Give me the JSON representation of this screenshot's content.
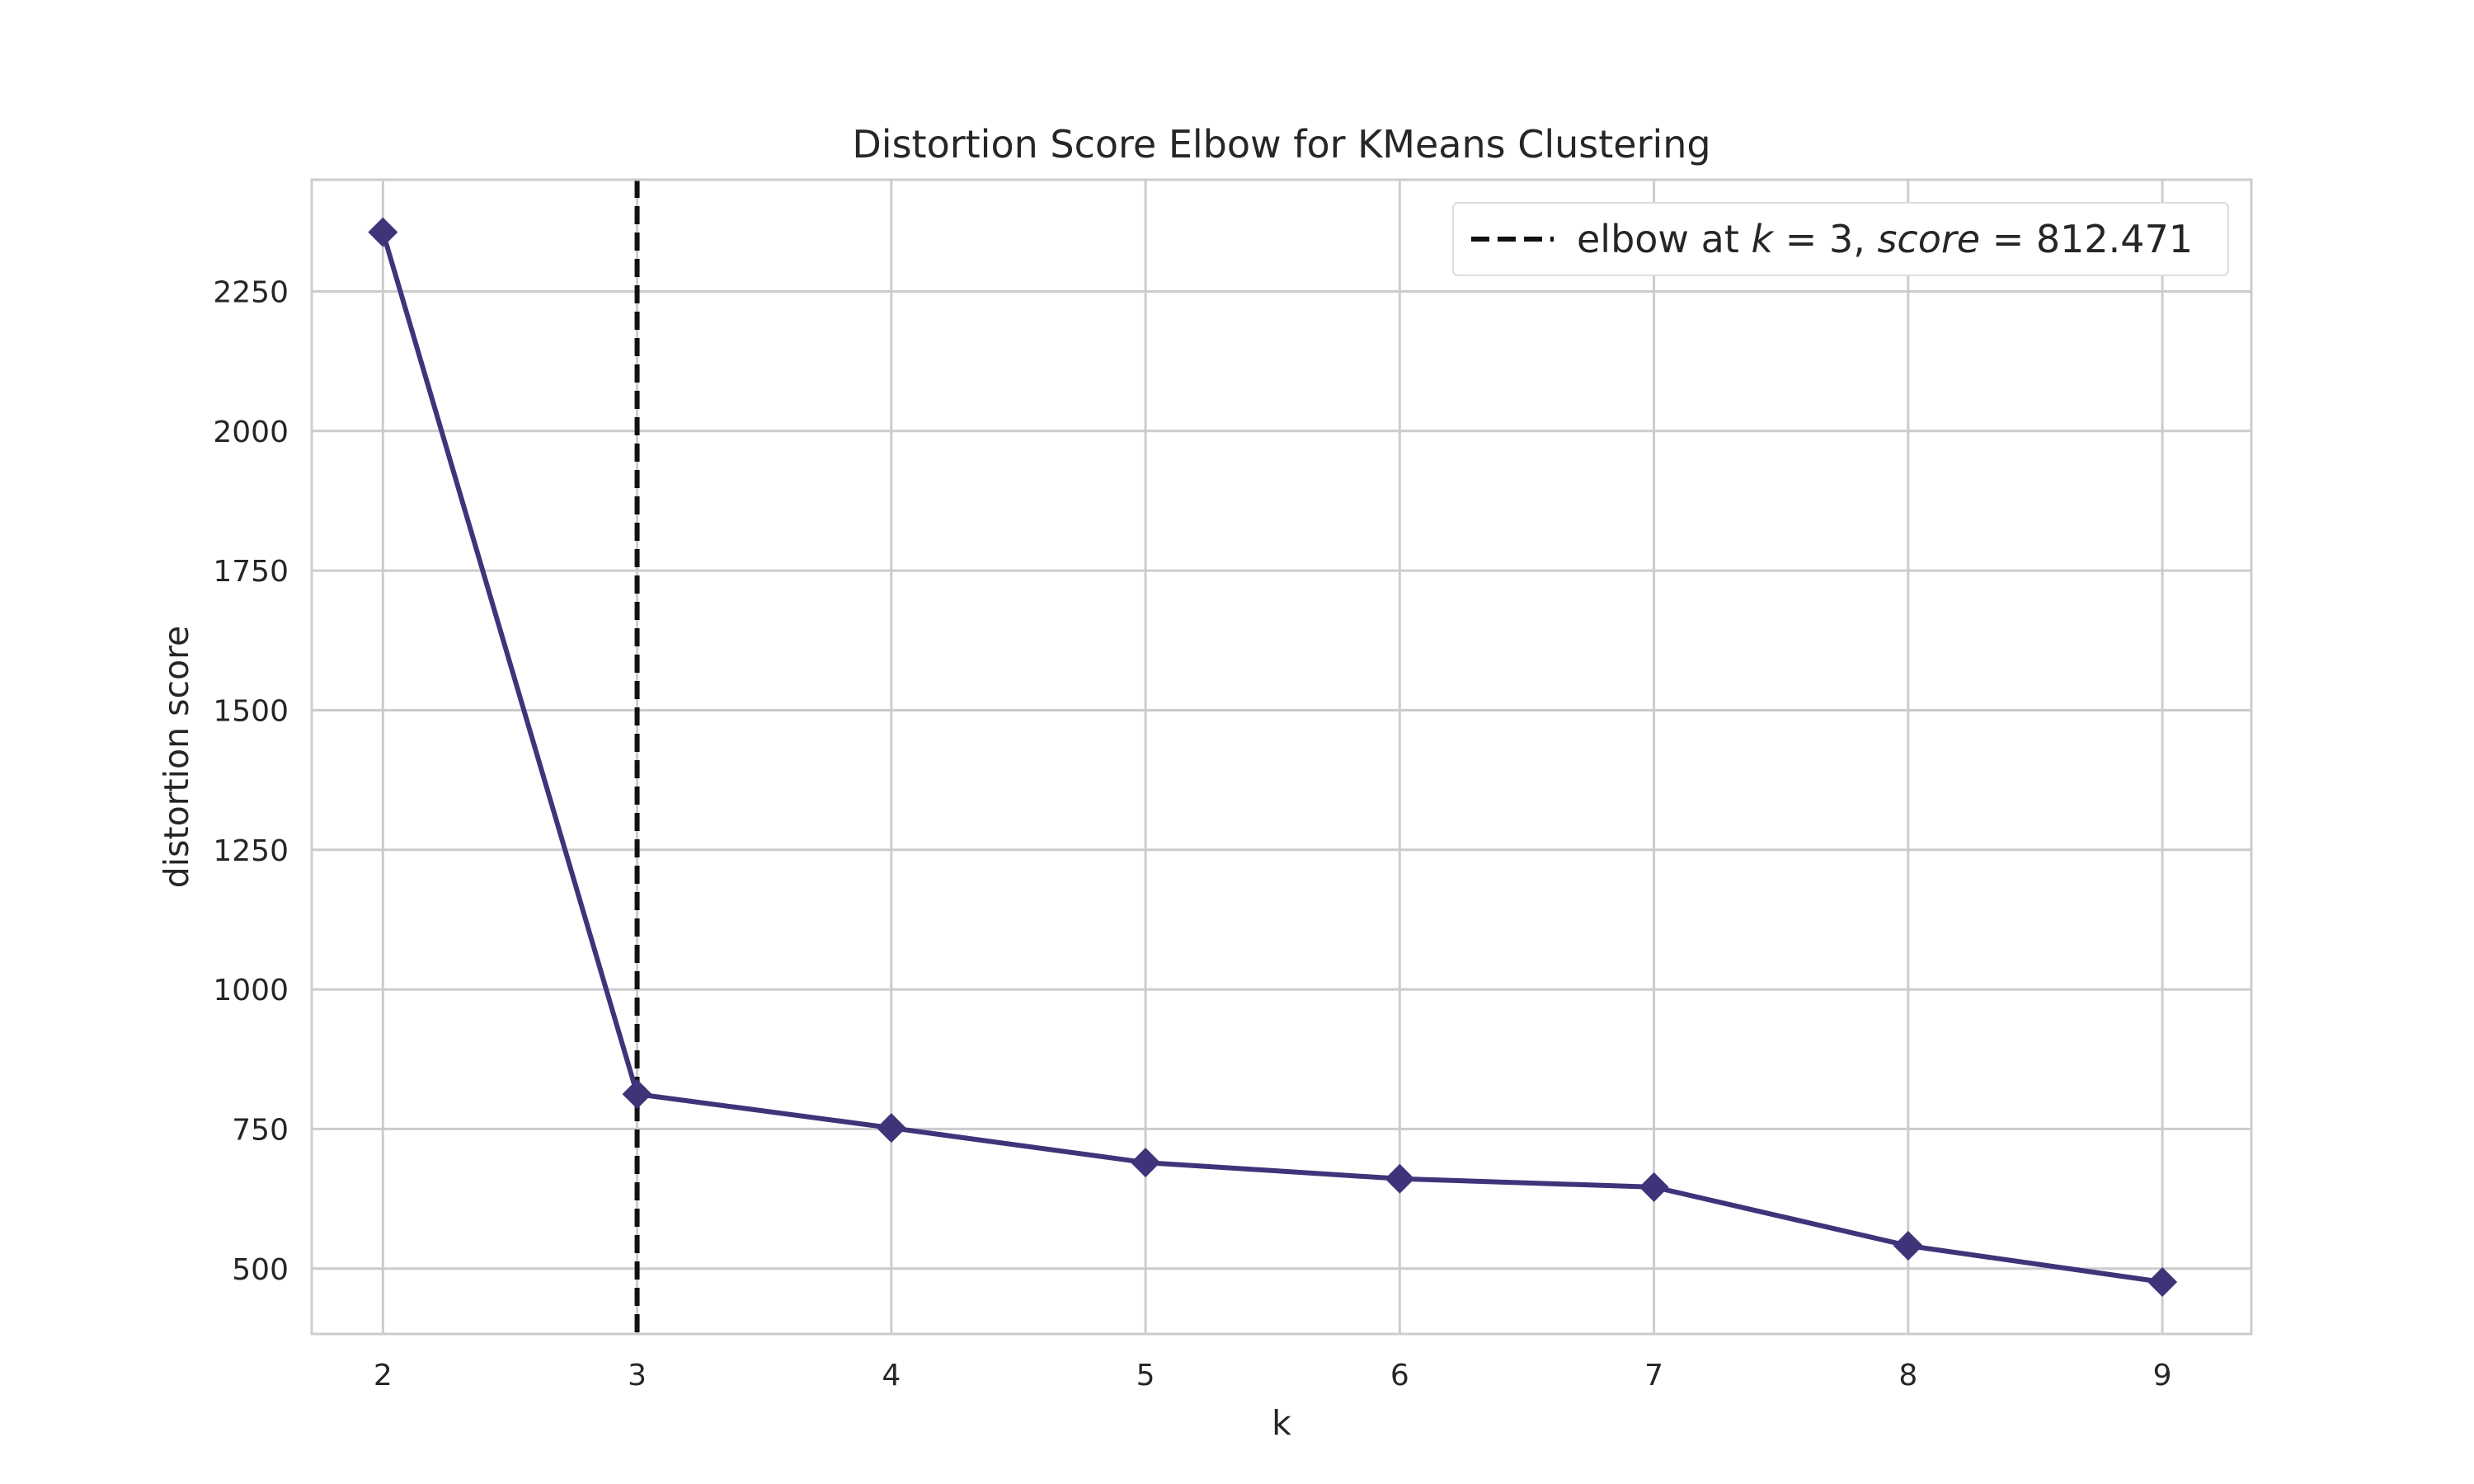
{
  "chart_data": {
    "type": "line",
    "title": "Distortion Score Elbow for KMeans Clustering",
    "xlabel": "k",
    "ylabel": "distortion score",
    "x": [
      2,
      3,
      4,
      5,
      6,
      7,
      8,
      9
    ],
    "series": [
      {
        "values": [
          2356,
          812.471,
          752,
          690,
          661,
          646,
          541,
          476
        ],
        "color": "#41337a",
        "marker": "diamond"
      }
    ],
    "x_ticks": [
      "2",
      "3",
      "4",
      "5",
      "6",
      "7",
      "8",
      "9"
    ],
    "y_ticks": [
      "500",
      "750",
      "1000",
      "1250",
      "1500",
      "1750",
      "2000",
      "2250"
    ],
    "xlim": [
      1.72,
      9.35
    ],
    "ylim": [
      383,
      2450
    ],
    "grid": true,
    "elbow": {
      "k": 3,
      "score": 812.471,
      "color": "#111111",
      "style": "dashed",
      "legend_label": "elbow at k = 3, score = 812.471",
      "legend_parts": {
        "prefix": "elbow at ",
        "k_var": "k",
        "k_eq": " = 3, ",
        "score_var": "score",
        "score_eq": " = 812.471"
      }
    },
    "legend_position": "top-right",
    "colors": {
      "grid": "#cccccc",
      "frame": "#cccccc",
      "background": "#ffffff"
    }
  }
}
